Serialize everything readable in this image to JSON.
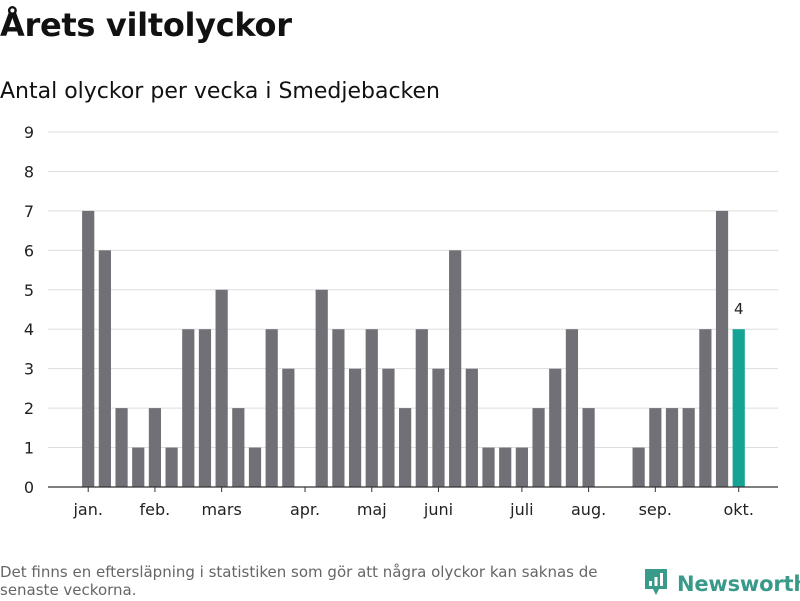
{
  "title": "Årets viltolyckor",
  "subtitle": "Antal olyckor per vecka i Smedjebacken",
  "footnote": "Det finns en eftersläpning i statistiken som gör att några olyckor kan saknas de senaste veckorna.",
  "brand": {
    "name": "Newsworthy",
    "icon": "newsworthy-logo-icon"
  },
  "colors": {
    "bar": "#717076",
    "highlight": "#14a394",
    "grid": "#dddddd",
    "axis": "#333333",
    "text": "#222222"
  },
  "chart_data": {
    "type": "bar",
    "title": "Årets viltolyckor",
    "subtitle": "Antal olyckor per vecka i Smedjebacken",
    "xlabel": "",
    "ylabel": "",
    "ylim": [
      0,
      9
    ],
    "yticks": [
      0,
      1,
      2,
      3,
      4,
      5,
      6,
      7,
      8,
      9
    ],
    "grid": true,
    "weeks": [
      1,
      2,
      3,
      4,
      5,
      6,
      7,
      8,
      9,
      10,
      11,
      12,
      13,
      14,
      15,
      16,
      17,
      18,
      19,
      20,
      21,
      22,
      23,
      24,
      25,
      26,
      27,
      28,
      29,
      30,
      31,
      32,
      33,
      34,
      35,
      36,
      37,
      38,
      39,
      40
    ],
    "values": [
      7,
      6,
      2,
      1,
      2,
      1,
      4,
      4,
      5,
      2,
      1,
      4,
      3,
      0,
      5,
      4,
      3,
      4,
      3,
      2,
      4,
      3,
      6,
      3,
      1,
      1,
      1,
      2,
      3,
      4,
      2,
      0,
      0,
      1,
      2,
      2,
      2,
      4,
      7,
      4
    ],
    "highlight_index": 39,
    "highlight_label": "4",
    "month_labels": [
      {
        "label": "jan.",
        "week": 1
      },
      {
        "label": "feb.",
        "week": 5
      },
      {
        "label": "mars",
        "week": 9
      },
      {
        "label": "apr.",
        "week": 14
      },
      {
        "label": "maj",
        "week": 18
      },
      {
        "label": "juni",
        "week": 22
      },
      {
        "label": "juli",
        "week": 27
      },
      {
        "label": "aug.",
        "week": 31
      },
      {
        "label": "sep.",
        "week": 35
      },
      {
        "label": "okt.",
        "week": 40
      }
    ]
  }
}
